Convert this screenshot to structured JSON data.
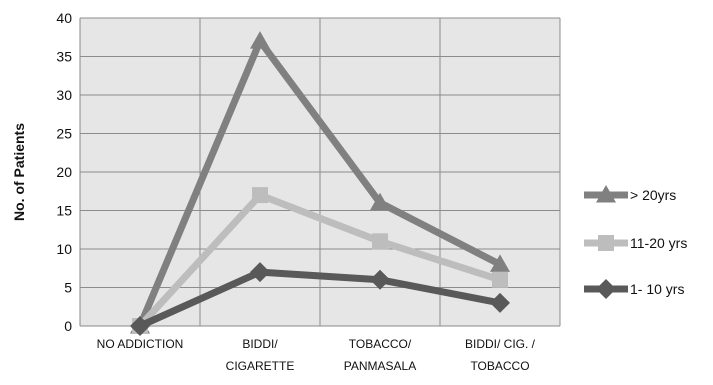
{
  "chart_data": {
    "type": "line",
    "title": "",
    "xlabel": "",
    "ylabel": "No. of Patients",
    "ylim": [
      0,
      40
    ],
    "yticks": [
      0,
      5,
      10,
      15,
      20,
      25,
      30,
      35,
      40
    ],
    "grid": true,
    "legend_position": "right",
    "categories": [
      [
        "NO ADDICTION"
      ],
      [
        "BIDDI/",
        "CIGARETTE"
      ],
      [
        "TOBACCO/",
        "PANMASALA"
      ],
      [
        "BIDDI/ CIG. /",
        "TOBACCO"
      ]
    ],
    "series": [
      {
        "name": "> 20yrs",
        "values": [
          0,
          37,
          16,
          8
        ],
        "color": "#808080",
        "marker": "triangle"
      },
      {
        "name": "11-20 yrs",
        "values": [
          0,
          17,
          11,
          6
        ],
        "color": "#bdbdbd",
        "marker": "square"
      },
      {
        "name": "1- 10 yrs",
        "values": [
          0,
          7,
          6,
          3
        ],
        "color": "#595959",
        "marker": "diamond"
      }
    ]
  }
}
